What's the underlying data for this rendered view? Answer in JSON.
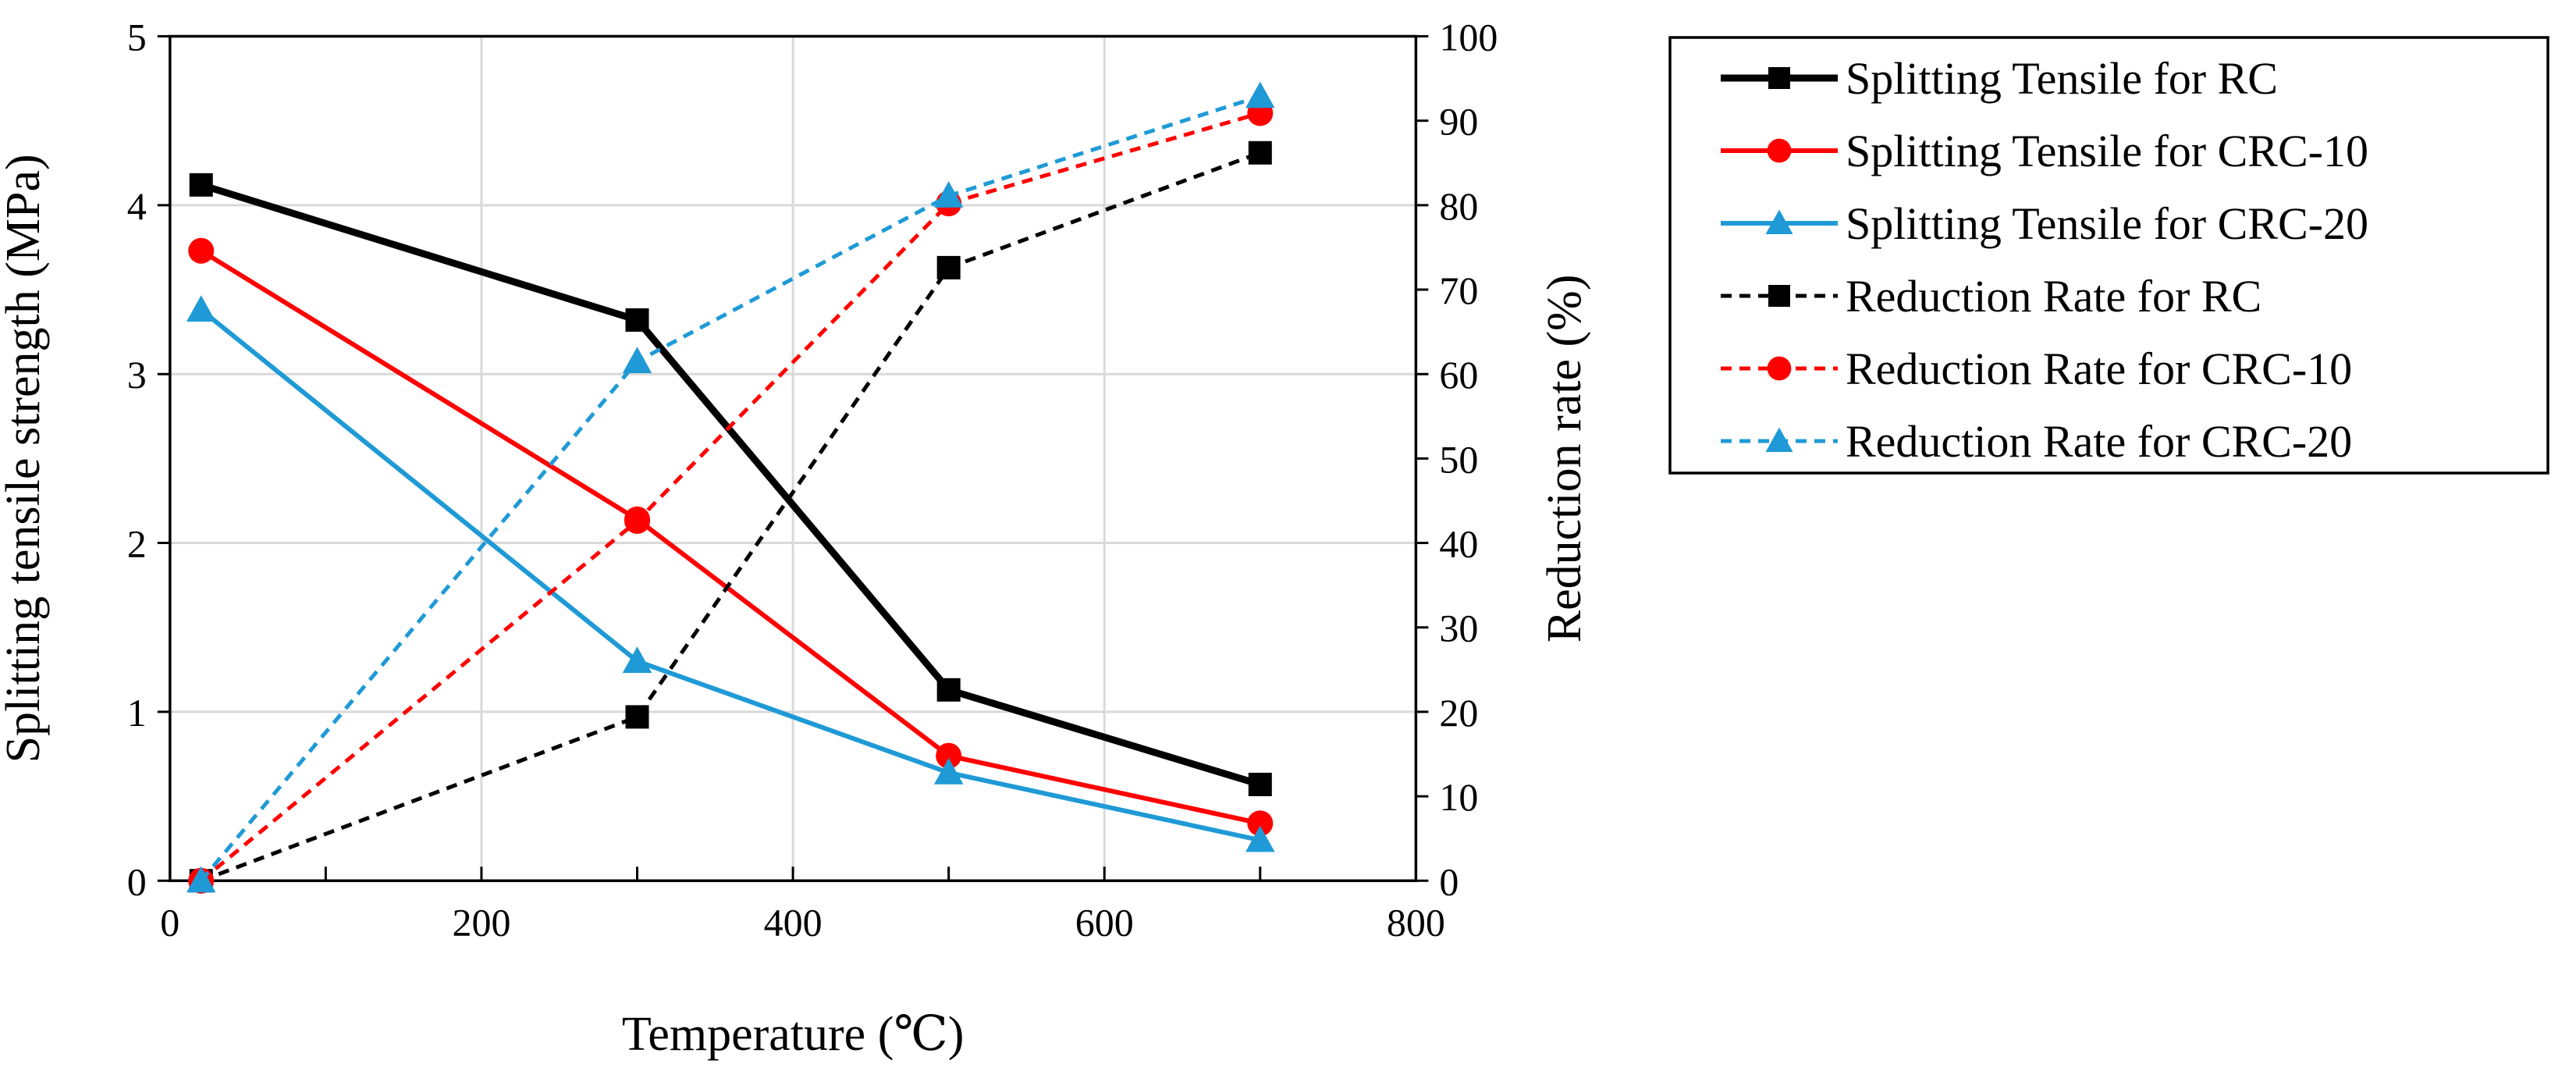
{
  "chart_data": {
    "type": "line",
    "xlabel": "Temperature (℃)",
    "ylabel": "Splitting tensile strength (MPa)",
    "y2label": "Reduction rate (%)",
    "xlim": [
      0,
      800
    ],
    "ylim": [
      0,
      5
    ],
    "y2lim": [
      0,
      100
    ],
    "x_ticks": [
      "0",
      "200",
      "400",
      "600",
      "800"
    ],
    "y_ticks": [
      "0",
      "1",
      "2",
      "3",
      "4",
      "5"
    ],
    "y2_ticks": [
      "0",
      "10",
      "20",
      "30",
      "40",
      "50",
      "60",
      "70",
      "80",
      "90",
      "100"
    ],
    "grid": true,
    "legend_position": "right, outside plot",
    "series": [
      {
        "name": "Splitting Tensile for RC",
        "axis": "left",
        "color": "#000000",
        "line_style": "solid-bold",
        "marker": "square",
        "x": [
          20,
          300,
          500,
          700
        ],
        "y": [
          4.12,
          3.32,
          1.13,
          0.57
        ]
      },
      {
        "name": "Splitting Tensile for CRC-10",
        "axis": "left",
        "color": "#ff0000",
        "line_style": "solid",
        "marker": "circle",
        "x": [
          20,
          300,
          500,
          700
        ],
        "y": [
          3.73,
          2.14,
          0.74,
          0.34
        ]
      },
      {
        "name": "Splitting Tensile for CRC-20",
        "axis": "left",
        "color": "#1f9ad6",
        "line_style": "solid",
        "marker": "triangle",
        "x": [
          20,
          300,
          500,
          700
        ],
        "y": [
          3.38,
          1.3,
          0.64,
          0.24
        ]
      },
      {
        "name": "Reduction Rate for RC",
        "axis": "right",
        "color": "#000000",
        "line_style": "dashed",
        "marker": "square",
        "x": [
          20,
          300,
          500,
          700
        ],
        "y": [
          0,
          19.4,
          72.6,
          86.2
        ]
      },
      {
        "name": "Reduction Rate for CRC-10",
        "axis": "right",
        "color": "#ff0000",
        "line_style": "dashed",
        "marker": "circle",
        "x": [
          20,
          300,
          500,
          700
        ],
        "y": [
          0,
          42.6,
          80.2,
          90.9
        ]
      },
      {
        "name": "Reduction Rate for CRC-20",
        "axis": "right",
        "color": "#1f9ad6",
        "line_style": "dashed",
        "marker": "triangle",
        "x": [
          20,
          300,
          500,
          700
        ],
        "y": [
          0,
          61.5,
          81.1,
          92.9
        ]
      }
    ]
  }
}
